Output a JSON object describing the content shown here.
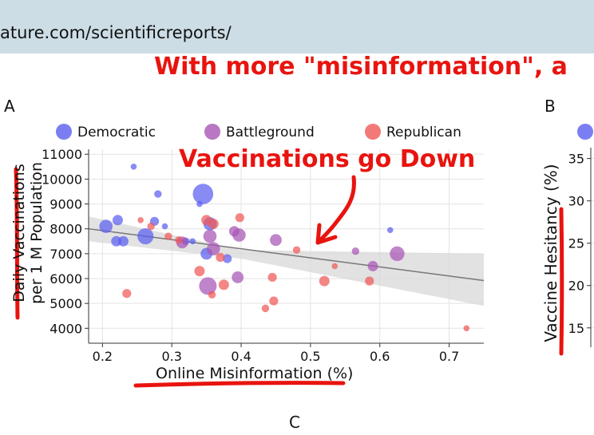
{
  "browser": {
    "url": "ature.com/scientificreports/"
  },
  "headline": "With more \"misinformation\", a",
  "panels": {
    "a": "A",
    "b": "B",
    "c": "C"
  },
  "annotation": "Vaccinations go Down",
  "colors": {
    "democratic": "#5a5ef0",
    "battleground": "#a855b5",
    "republican": "#f05858",
    "annotation_red": "#e8140f",
    "trend_line": "#777777",
    "confidence_band": "#d8d8d8"
  },
  "chart_data": [
    {
      "type": "scatter",
      "title": "",
      "xlabel": "Online Misinformation (%)",
      "ylabel_lines": [
        "Daily Vaccinations",
        "per 1 M Population"
      ],
      "xlim": [
        0.18,
        0.75
      ],
      "ylim": [
        3400,
        11200
      ],
      "x_ticks": [
        0.2,
        0.3,
        0.4,
        0.5,
        0.6,
        0.7
      ],
      "x_tick_labels": [
        "0.2",
        "0.3",
        "0.4",
        "0.5",
        "0.6",
        "0.7"
      ],
      "y_ticks": [
        4000,
        5000,
        6000,
        7000,
        8000,
        9000,
        10000,
        11000
      ],
      "y_tick_labels": [
        "4000",
        "5000",
        "6000",
        "7000",
        "8000",
        "9000",
        "10000",
        "11000"
      ],
      "grid": true,
      "legend_position": "top",
      "trend_line": {
        "x": [
          0.18,
          0.75
        ],
        "y": [
          8000,
          5920
        ]
      },
      "confidence_band": {
        "x": [
          0.18,
          0.4,
          0.75
        ],
        "upper": [
          8500,
          7150,
          7000
        ],
        "lower": [
          7500,
          6800,
          4900
        ]
      },
      "series": [
        {
          "name": "Democratic",
          "color": "democratic",
          "points": [
            {
              "x": 0.245,
              "y": 10500,
              "s": 2
            },
            {
              "x": 0.345,
              "y": 9400,
              "s": 12
            },
            {
              "x": 0.28,
              "y": 9400,
              "s": 3
            },
            {
              "x": 0.34,
              "y": 9000,
              "s": 2
            },
            {
              "x": 0.205,
              "y": 8100,
              "s": 7
            },
            {
              "x": 0.222,
              "y": 8350,
              "s": 5
            },
            {
              "x": 0.22,
              "y": 7500,
              "s": 5
            },
            {
              "x": 0.23,
              "y": 7500,
              "s": 5
            },
            {
              "x": 0.262,
              "y": 7700,
              "s": 9
            },
            {
              "x": 0.275,
              "y": 8300,
              "s": 4
            },
            {
              "x": 0.29,
              "y": 8100,
              "s": 2
            },
            {
              "x": 0.32,
              "y": 7500,
              "s": 3
            },
            {
              "x": 0.33,
              "y": 7500,
              "s": 2
            },
            {
              "x": 0.355,
              "y": 8200,
              "s": 7
            },
            {
              "x": 0.35,
              "y": 7000,
              "s": 6
            },
            {
              "x": 0.38,
              "y": 6800,
              "s": 4
            },
            {
              "x": 0.615,
              "y": 7950,
              "s": 2
            }
          ]
        },
        {
          "name": "Battleground",
          "color": "battleground",
          "points": [
            {
              "x": 0.355,
              "y": 7700,
              "s": 7
            },
            {
              "x": 0.36,
              "y": 7200,
              "s": 7
            },
            {
              "x": 0.39,
              "y": 7900,
              "s": 5
            },
            {
              "x": 0.397,
              "y": 7750,
              "s": 7
            },
            {
              "x": 0.315,
              "y": 7450,
              "s": 6
            },
            {
              "x": 0.395,
              "y": 6050,
              "s": 6
            },
            {
              "x": 0.352,
              "y": 5700,
              "s": 10
            },
            {
              "x": 0.45,
              "y": 7550,
              "s": 6
            },
            {
              "x": 0.565,
              "y": 7100,
              "s": 3
            },
            {
              "x": 0.625,
              "y": 7000,
              "s": 8
            },
            {
              "x": 0.59,
              "y": 6500,
              "s": 5
            }
          ]
        },
        {
          "name": "Republican",
          "color": "republican",
          "points": [
            {
              "x": 0.255,
              "y": 8350,
              "s": 2
            },
            {
              "x": 0.27,
              "y": 8100,
              "s": 3
            },
            {
              "x": 0.295,
              "y": 7700,
              "s": 3
            },
            {
              "x": 0.31,
              "y": 7550,
              "s": 3
            },
            {
              "x": 0.35,
              "y": 8350,
              "s": 5
            },
            {
              "x": 0.36,
              "y": 8200,
              "s": 5
            },
            {
              "x": 0.398,
              "y": 8450,
              "s": 4
            },
            {
              "x": 0.37,
              "y": 6850,
              "s": 4
            },
            {
              "x": 0.34,
              "y": 6300,
              "s": 5
            },
            {
              "x": 0.375,
              "y": 5750,
              "s": 5
            },
            {
              "x": 0.358,
              "y": 5350,
              "s": 3
            },
            {
              "x": 0.235,
              "y": 5400,
              "s": 4
            },
            {
              "x": 0.445,
              "y": 6050,
              "s": 4
            },
            {
              "x": 0.447,
              "y": 5100,
              "s": 4
            },
            {
              "x": 0.435,
              "y": 4800,
              "s": 3
            },
            {
              "x": 0.48,
              "y": 7150,
              "s": 3
            },
            {
              "x": 0.52,
              "y": 5900,
              "s": 5
            },
            {
              "x": 0.535,
              "y": 6500,
              "s": 2
            },
            {
              "x": 0.585,
              "y": 5900,
              "s": 4
            },
            {
              "x": 0.725,
              "y": 4000,
              "s": 2
            }
          ]
        }
      ]
    },
    {
      "type": "scatter",
      "title": "",
      "ylabel": "Vaccine Hesitancy (%)",
      "ylim": [
        13,
        36
      ],
      "y_ticks": [
        15,
        20,
        25,
        30,
        35
      ],
      "y_tick_labels": [
        "15",
        "20",
        "25",
        "30",
        "35"
      ],
      "grid": true
    }
  ]
}
